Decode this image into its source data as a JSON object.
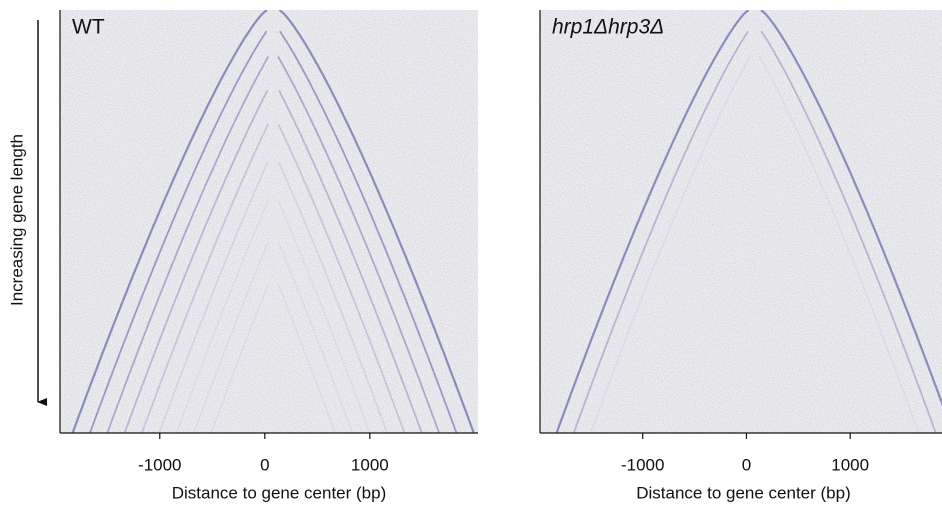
{
  "chart_data": [
    {
      "type": "heatmap",
      "title": "WT",
      "x_label": "Distance to gene center (bp)",
      "y_label": "Increasing gene length",
      "xlim": [
        -1950,
        2030
      ],
      "xticks": [
        -1000,
        0,
        1000
      ]
    },
    {
      "type": "heatmap",
      "title": "hrp1Δhrp3Δ",
      "x_label": "Distance to gene center (bp)",
      "xlim": [
        -1990,
        1885
      ],
      "xticks": [
        -1000,
        0,
        1000
      ]
    }
  ]
}
